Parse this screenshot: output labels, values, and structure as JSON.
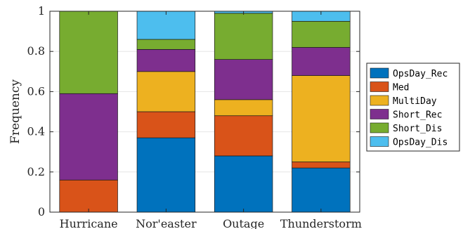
{
  "chart_data": {
    "type": "bar",
    "stacked": true,
    "categories": [
      "Hurricane",
      "Nor'easter",
      "Outage",
      "Thunderstorm"
    ],
    "series": [
      {
        "name": "OpsDay_Rec",
        "color": "#0072BD",
        "values": [
          0.0,
          0.37,
          0.28,
          0.22
        ]
      },
      {
        "name": "Med",
        "color": "#D95319",
        "values": [
          0.16,
          0.13,
          0.2,
          0.03
        ]
      },
      {
        "name": "MultiDay",
        "color": "#EDB120",
        "values": [
          0.0,
          0.2,
          0.08,
          0.43
        ]
      },
      {
        "name": "Short_Rec",
        "color": "#7E2F8E",
        "values": [
          0.43,
          0.11,
          0.2,
          0.14
        ]
      },
      {
        "name": "Short_Dis",
        "color": "#77AC30",
        "values": [
          0.41,
          0.05,
          0.23,
          0.13
        ]
      },
      {
        "name": "OpsDay_Dis",
        "color": "#4DBEEE",
        "values": [
          0.0,
          0.14,
          0.01,
          0.05
        ]
      }
    ],
    "ylabel": "Frequency",
    "xlabel": "",
    "ylim": [
      0,
      1
    ],
    "yticks": [
      0,
      0.2,
      0.4,
      0.6,
      0.8,
      1
    ],
    "ytick_labels": [
      "0",
      "0.2",
      "0.4",
      "0.6",
      "0.8",
      "1"
    ],
    "grid": true,
    "legend_position": "right"
  }
}
